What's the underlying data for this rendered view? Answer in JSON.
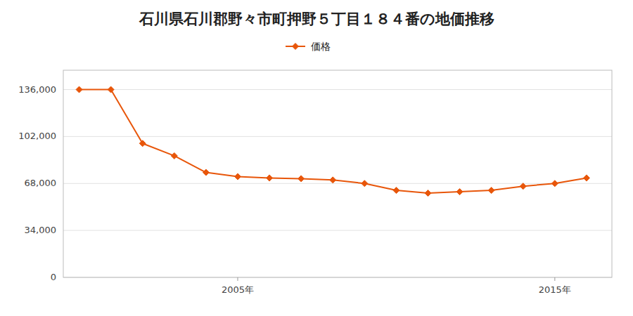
{
  "chart_data": {
    "type": "line",
    "title": "石川県石川郡野々市町押野５丁目１８４番の地価推移",
    "x": [
      2000,
      2001,
      2002,
      2003,
      2004,
      2005,
      2006,
      2007,
      2008,
      2009,
      2010,
      2011,
      2012,
      2013,
      2014,
      2015,
      2016
    ],
    "series": [
      {
        "name": "価格",
        "color": "#e8560a",
        "marker": "diamond",
        "line_style": "solid",
        "values": [
          136000,
          136000,
          97000,
          88000,
          76000,
          73000,
          72000,
          71500,
          70500,
          68000,
          63000,
          61000,
          62000,
          63000,
          66000,
          68000,
          72000
        ]
      }
    ],
    "xlim": [
      1999.5,
      2016.8
    ],
    "xticks": [
      {
        "value": 2005,
        "label": "2005年"
      },
      {
        "value": 2015,
        "label": "2015年"
      }
    ],
    "ylim": [
      0,
      150000
    ],
    "yticks": [
      0,
      {
        "value": 34000,
        "label": "34,000"
      },
      {
        "value": 68000,
        "label": "68,000"
      },
      {
        "value": 102000,
        "label": "102,000"
      },
      {
        "value": 136000,
        "label": "136,000"
      }
    ],
    "grid": true,
    "legend": "top"
  }
}
